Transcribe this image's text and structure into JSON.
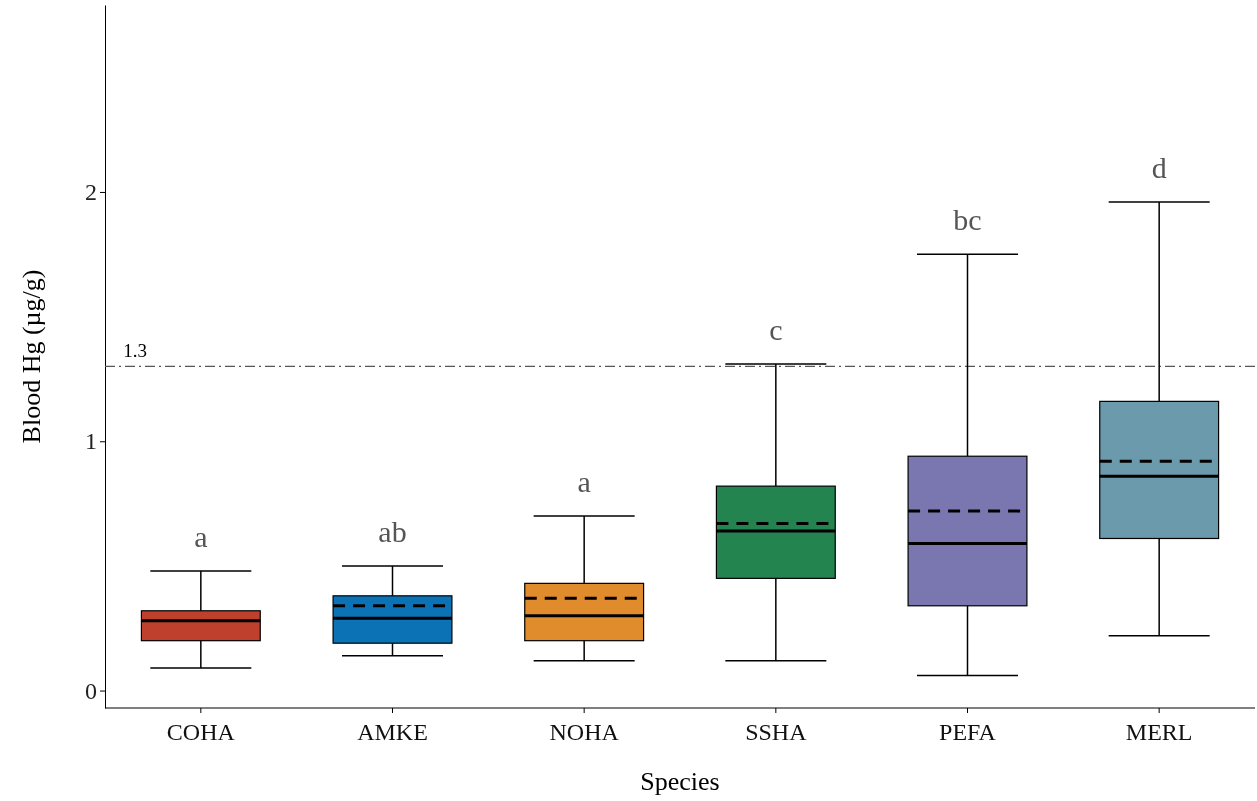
{
  "chart_data": {
    "type": "box",
    "xlabel": "Species",
    "ylabel": "Blood Hg  (µg/g)",
    "categories": [
      "COHA",
      "AMKE",
      "NOHA",
      "SSHA",
      "PEFA",
      "MERL"
    ],
    "colors": [
      "#c0402e",
      "#0b72b5",
      "#e08b2c",
      "#238450",
      "#7a76b0",
      "#6c9aad"
    ],
    "boxes": [
      {
        "low": 0.09,
        "q1": 0.2,
        "median": 0.28,
        "q3": 0.32,
        "high": 0.48
      },
      {
        "low": 0.14,
        "q1": 0.19,
        "median": 0.29,
        "q3": 0.38,
        "high": 0.5,
        "mean": 0.34
      },
      {
        "low": 0.12,
        "q1": 0.2,
        "median": 0.3,
        "q3": 0.43,
        "high": 0.7,
        "mean": 0.37
      },
      {
        "low": 0.12,
        "q1": 0.45,
        "median": 0.64,
        "q3": 0.82,
        "high": 1.31,
        "mean": 0.67
      },
      {
        "low": 0.06,
        "q1": 0.34,
        "median": 0.59,
        "q3": 0.94,
        "high": 1.75,
        "mean": 0.72
      },
      {
        "low": 0.22,
        "q1": 0.61,
        "median": 0.86,
        "q3": 1.16,
        "high": 1.96,
        "mean": 0.92
      }
    ],
    "ylim": [
      -0.07,
      2.75
    ],
    "yticks": [
      0,
      1,
      2
    ],
    "grid": false,
    "ref_lines": [
      {
        "axis": "y",
        "value": 1.3,
        "label": "1.3",
        "color": "#555555",
        "line_style": "dashdot"
      }
    ],
    "annotations": [
      "a",
      "ab",
      "a",
      "c",
      "bc",
      "d"
    ]
  }
}
